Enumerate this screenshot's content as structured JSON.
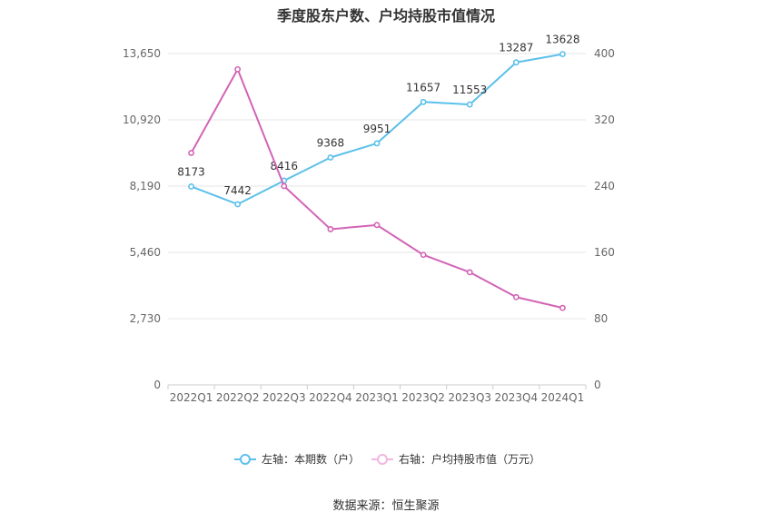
{
  "chart_data": {
    "type": "line",
    "title": "季度股东户数、户均持股市值情况",
    "categories": [
      "2022Q1",
      "2022Q2",
      "2022Q3",
      "2022Q4",
      "2023Q1",
      "2023Q2",
      "2023Q3",
      "2023Q4",
      "2024Q1"
    ],
    "left_axis": {
      "ticks": [
        "0",
        "2,730",
        "5,460",
        "8,190",
        "10,920",
        "13,650"
      ],
      "ylim": [
        0,
        13650
      ]
    },
    "right_axis": {
      "ticks": [
        "0",
        "80",
        "160",
        "240",
        "320",
        "400"
      ],
      "ylim": [
        0,
        400
      ]
    },
    "series": [
      {
        "name": "左轴：本期数（户）",
        "axis": "left",
        "color": "#5bc0eb",
        "values": [
          8173,
          7442,
          8416,
          9368,
          9951,
          11657,
          11553,
          13287,
          13628
        ],
        "labels": [
          "8173",
          "7442",
          "8416",
          "9368",
          "9951",
          "11657",
          "11553",
          "13287",
          "13628"
        ]
      },
      {
        "name": "右轴：户均持股市值（万元）",
        "axis": "right",
        "color": "#d264b6",
        "values": [
          280,
          381,
          240,
          188,
          193,
          157,
          136,
          106,
          93
        ]
      }
    ],
    "grid": true,
    "legend_position": "bottom",
    "source": "数据来源：恒生聚源"
  }
}
